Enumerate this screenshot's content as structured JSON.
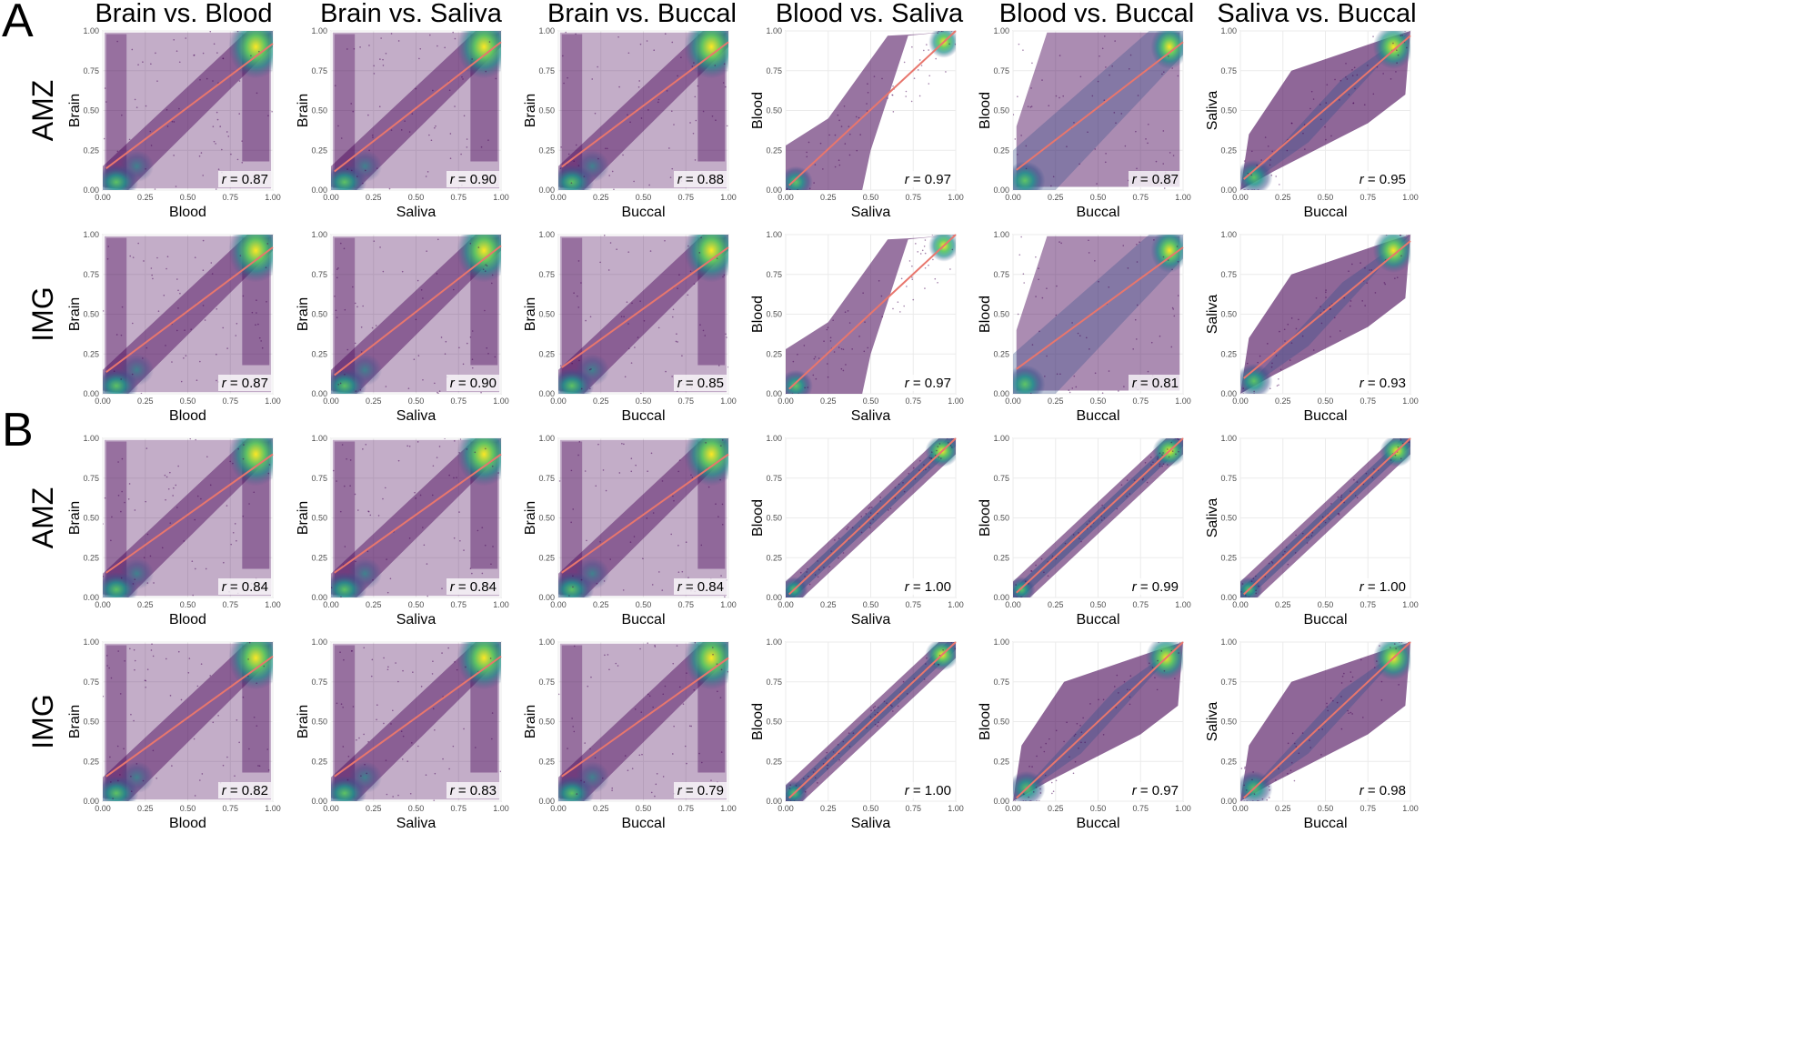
{
  "panel_letters": [
    "A",
    "B"
  ],
  "column_titles": [
    "Brain vs. Blood",
    "Brain vs. Saliva",
    "Brain vs. Buccal",
    "Blood vs. Saliva",
    "Blood vs. Buccal",
    "Saliva vs. Buccal"
  ],
  "row_labels": [
    "AMZ",
    "IMG",
    "AMZ",
    "IMG"
  ],
  "colors": {
    "background": "#ffffff",
    "panel_border": "#bdbdbd",
    "grid": "#ebebeb",
    "fit_line": "#e8766d",
    "viridis": [
      "#440154",
      "#3b528b",
      "#21918c",
      "#5ec962",
      "#fde725"
    ]
  },
  "chart_data": {
    "type": "scatter",
    "description_note": "Density-colored scatter plots of methylation beta values with fitted regression line and Pearson r",
    "xlim": [
      0,
      1
    ],
    "ylim": [
      0,
      1
    ],
    "ticks": [
      "0.00",
      "0.25",
      "0.50",
      "0.75",
      "1.00"
    ],
    "r_prefix": "r",
    "panels": [
      {
        "panel": "A",
        "row": "AMZ",
        "col": 0,
        "ylabel": "Brain",
        "xlabel": "Blood",
        "r": "0.87",
        "fit": [
          0.12,
          0.92
        ],
        "kind": "brain"
      },
      {
        "panel": "A",
        "row": "AMZ",
        "col": 1,
        "ylabel": "Brain",
        "xlabel": "Saliva",
        "r": "0.90",
        "fit": [
          0.1,
          0.93
        ],
        "kind": "brain"
      },
      {
        "panel": "A",
        "row": "AMZ",
        "col": 2,
        "ylabel": "Brain",
        "xlabel": "Buccal",
        "r": "0.88",
        "fit": [
          0.13,
          0.93
        ],
        "kind": "brain"
      },
      {
        "panel": "A",
        "row": "AMZ",
        "col": 3,
        "ylabel": "Blood",
        "xlabel": "Saliva",
        "r": "0.97",
        "fit": [
          0.01,
          1.0
        ],
        "kind": "sshape"
      },
      {
        "panel": "A",
        "row": "AMZ",
        "col": 4,
        "ylabel": "Blood",
        "xlabel": "Buccal",
        "r": "0.87",
        "fit": [
          0.11,
          0.93
        ],
        "kind": "box"
      },
      {
        "panel": "A",
        "row": "AMZ",
        "col": 5,
        "ylabel": "Saliva",
        "xlabel": "Buccal",
        "r": "0.95",
        "fit": [
          0.05,
          0.97
        ],
        "kind": "lens"
      },
      {
        "panel": "A",
        "row": "IMG",
        "col": 0,
        "ylabel": "Brain",
        "xlabel": "Blood",
        "r": "0.87",
        "fit": [
          0.12,
          0.92
        ],
        "kind": "brain"
      },
      {
        "panel": "A",
        "row": "IMG",
        "col": 1,
        "ylabel": "Brain",
        "xlabel": "Saliva",
        "r": "0.90",
        "fit": [
          0.1,
          0.93
        ],
        "kind": "brain"
      },
      {
        "panel": "A",
        "row": "IMG",
        "col": 2,
        "ylabel": "Brain",
        "xlabel": "Buccal",
        "r": "0.85",
        "fit": [
          0.15,
          0.92
        ],
        "kind": "brain"
      },
      {
        "panel": "A",
        "row": "IMG",
        "col": 3,
        "ylabel": "Blood",
        "xlabel": "Saliva",
        "r": "0.97",
        "fit": [
          0.01,
          1.0
        ],
        "kind": "sshape"
      },
      {
        "panel": "A",
        "row": "IMG",
        "col": 4,
        "ylabel": "Blood",
        "xlabel": "Buccal",
        "r": "0.81",
        "fit": [
          0.14,
          0.92
        ],
        "kind": "box"
      },
      {
        "panel": "A",
        "row": "IMG",
        "col": 5,
        "ylabel": "Saliva",
        "xlabel": "Buccal",
        "r": "0.93",
        "fit": [
          0.08,
          0.96
        ],
        "kind": "lens"
      },
      {
        "panel": "B",
        "row": "AMZ",
        "col": 0,
        "ylabel": "Brain",
        "xlabel": "Blood",
        "r": "0.84",
        "fit": [
          0.14,
          0.9
        ],
        "kind": "brain"
      },
      {
        "panel": "B",
        "row": "AMZ",
        "col": 1,
        "ylabel": "Brain",
        "xlabel": "Saliva",
        "r": "0.84",
        "fit": [
          0.14,
          0.9
        ],
        "kind": "brain"
      },
      {
        "panel": "B",
        "row": "AMZ",
        "col": 2,
        "ylabel": "Brain",
        "xlabel": "Buccal",
        "r": "0.84",
        "fit": [
          0.14,
          0.9
        ],
        "kind": "brain"
      },
      {
        "panel": "B",
        "row": "AMZ",
        "col": 3,
        "ylabel": "Blood",
        "xlabel": "Saliva",
        "r": "1.00",
        "fit": [
          0.0,
          1.0
        ],
        "kind": "tight"
      },
      {
        "panel": "B",
        "row": "AMZ",
        "col": 4,
        "ylabel": "Blood",
        "xlabel": "Buccal",
        "r": "0.99",
        "fit": [
          0.01,
          1.0
        ],
        "kind": "tight"
      },
      {
        "panel": "B",
        "row": "AMZ",
        "col": 5,
        "ylabel": "Saliva",
        "xlabel": "Buccal",
        "r": "1.00",
        "fit": [
          0.0,
          1.0
        ],
        "kind": "tight"
      },
      {
        "panel": "B",
        "row": "IMG",
        "col": 0,
        "ylabel": "Brain",
        "xlabel": "Blood",
        "r": "0.82",
        "fit": [
          0.14,
          0.91
        ],
        "kind": "brain"
      },
      {
        "panel": "B",
        "row": "IMG",
        "col": 1,
        "ylabel": "Brain",
        "xlabel": "Saliva",
        "r": "0.83",
        "fit": [
          0.14,
          0.91
        ],
        "kind": "brain"
      },
      {
        "panel": "B",
        "row": "IMG",
        "col": 2,
        "ylabel": "Brain",
        "xlabel": "Buccal",
        "r": "0.79",
        "fit": [
          0.14,
          0.9
        ],
        "kind": "brain"
      },
      {
        "panel": "B",
        "row": "IMG",
        "col": 3,
        "ylabel": "Blood",
        "xlabel": "Saliva",
        "r": "1.00",
        "fit": [
          0.0,
          1.0
        ],
        "kind": "tight"
      },
      {
        "panel": "B",
        "row": "IMG",
        "col": 4,
        "ylabel": "Blood",
        "xlabel": "Buccal",
        "r": "0.97",
        "fit": [
          0.0,
          1.0
        ],
        "kind": "lens"
      },
      {
        "panel": "B",
        "row": "IMG",
        "col": 5,
        "ylabel": "Saliva",
        "xlabel": "Buccal",
        "r": "0.98",
        "fit": [
          0.0,
          1.0
        ],
        "kind": "lens"
      }
    ]
  }
}
